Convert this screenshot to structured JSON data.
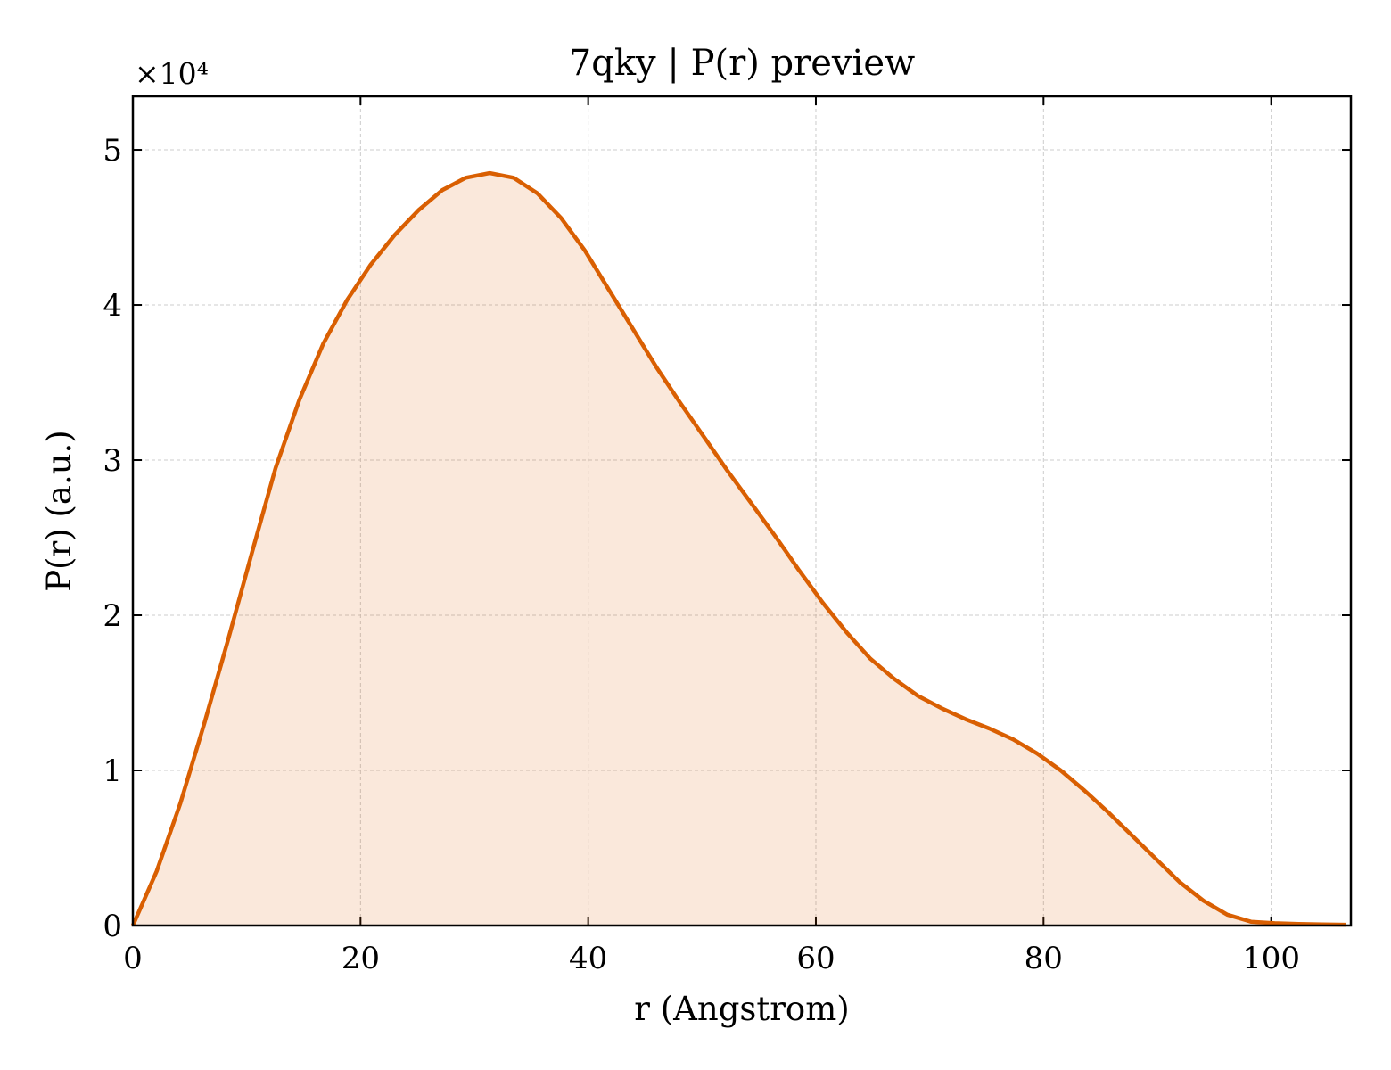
{
  "chart_data": {
    "type": "area",
    "title": "7qky | P(r) preview",
    "x_label": "r (Angstrom)",
    "y_label": "P(r) (a.u.)",
    "y_offset_label": "×10⁴",
    "series": [
      {
        "name": "P(r)",
        "color": "#d95f02",
        "x": [
          0,
          2.09,
          4.18,
          6.27,
          8.36,
          10.45,
          12.54,
          14.63,
          16.72,
          18.81,
          20.9,
          22.99,
          25.08,
          27.17,
          29.26,
          31.35,
          33.44,
          35.53,
          37.62,
          39.71,
          41.8,
          43.89,
          45.98,
          48.07,
          50.16,
          52.25,
          54.34,
          56.43,
          58.52,
          60.61,
          62.7,
          64.79,
          66.88,
          68.97,
          71.06,
          73.15,
          75.24,
          77.33,
          79.42,
          81.51,
          83.6,
          85.69,
          87.78,
          89.87,
          91.96,
          94.05,
          96.14,
          98.23,
          100.32,
          102.41,
          104.5,
          106.59
        ],
        "values": [
          0,
          0.35,
          0.79,
          1.3,
          1.84,
          2.4,
          2.95,
          3.39,
          3.75,
          4.03,
          4.26,
          4.45,
          4.61,
          4.74,
          4.82,
          4.85,
          4.82,
          4.72,
          4.56,
          4.35,
          4.1,
          3.85,
          3.6,
          3.37,
          3.15,
          2.93,
          2.72,
          2.51,
          2.29,
          2.08,
          1.89,
          1.72,
          1.59,
          1.48,
          1.4,
          1.33,
          1.27,
          1.2,
          1.11,
          1.0,
          0.87,
          0.73,
          0.58,
          0.43,
          0.28,
          0.16,
          0.07,
          0.025,
          0.015,
          0.01,
          0.007,
          0.005
        ]
      }
    ],
    "xlim": [
      0,
      107
    ],
    "xticks": [
      0,
      20,
      40,
      60,
      80,
      100
    ],
    "ylim": [
      0,
      5.345
    ],
    "yticks": [
      0,
      1,
      2,
      3,
      4,
      5
    ],
    "grid": true,
    "fill_opacity": 0.14
  }
}
